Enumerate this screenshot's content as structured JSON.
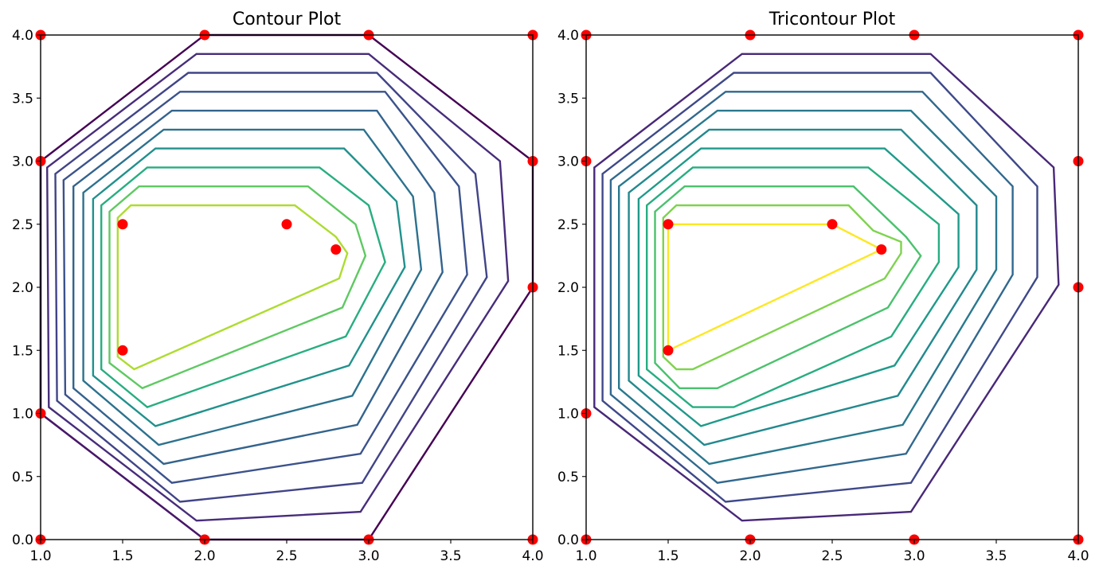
{
  "chart_data": [
    {
      "type": "contour",
      "title": "Contour Plot",
      "xlim": [
        1.0,
        4.0
      ],
      "ylim": [
        0.0,
        4.0
      ],
      "xticks": [
        "1.0",
        "1.5",
        "2.0",
        "2.5",
        "3.0",
        "3.5",
        "4.0"
      ],
      "yticks": [
        "0.0",
        "0.5",
        "1.0",
        "1.5",
        "2.0",
        "2.5",
        "3.0",
        "3.5",
        "4.0"
      ],
      "points_color": "#ff0000",
      "points": [
        [
          1.0,
          0.0
        ],
        [
          2.0,
          0.0
        ],
        [
          3.0,
          0.0
        ],
        [
          4.0,
          0.0
        ],
        [
          1.0,
          1.0
        ],
        [
          4.0,
          2.0
        ],
        [
          1.0,
          3.0
        ],
        [
          4.0,
          3.0
        ],
        [
          1.0,
          4.0
        ],
        [
          2.0,
          4.0
        ],
        [
          3.0,
          4.0
        ],
        [
          4.0,
          4.0
        ],
        [
          1.5,
          2.5
        ],
        [
          2.5,
          2.5
        ],
        [
          2.8,
          2.3
        ],
        [
          1.5,
          1.5
        ]
      ],
      "levels": [
        {
          "color": "#440154",
          "path": [
            [
              1.0,
              3.0
            ],
            [
              2.0,
              4.0
            ],
            [
              3.0,
              4.0
            ],
            [
              4.0,
              3.0
            ],
            [
              4.0,
              2.0
            ],
            [
              3.0,
              0.0
            ],
            [
              2.0,
              0.0
            ],
            [
              1.0,
              1.0
            ]
          ]
        },
        {
          "color": "#48186a",
          "path": [
            [
              1.0,
              3.0
            ],
            [
              1.0,
              1.0
            ],
            [
              2.0,
              0.0
            ],
            [
              2.0,
              0.0
            ]
          ],
          "open": true
        },
        {
          "color": "#472d7b",
          "path": [
            [
              1.04,
              2.95
            ],
            [
              1.95,
              3.85
            ],
            [
              3.0,
              3.85
            ],
            [
              3.8,
              3.0
            ],
            [
              3.85,
              2.05
            ],
            [
              2.95,
              0.22
            ],
            [
              1.95,
              0.15
            ],
            [
              1.05,
              1.05
            ]
          ]
        },
        {
          "color": "#414487",
          "path": [
            [
              1.09,
              2.9
            ],
            [
              1.9,
              3.7
            ],
            [
              3.05,
              3.7
            ],
            [
              3.65,
              2.9
            ],
            [
              3.72,
              2.08
            ],
            [
              2.96,
              0.45
            ],
            [
              1.85,
              0.3
            ],
            [
              1.1,
              1.1
            ]
          ]
        },
        {
          "color": "#3b528b",
          "path": [
            [
              1.14,
              2.85
            ],
            [
              1.85,
              3.55
            ],
            [
              3.1,
              3.55
            ],
            [
              3.55,
              2.8
            ],
            [
              3.6,
              2.1
            ],
            [
              2.95,
              0.68
            ],
            [
              1.8,
              0.45
            ],
            [
              1.15,
              1.15
            ]
          ]
        },
        {
          "color": "#33638d",
          "path": [
            [
              1.2,
              2.8
            ],
            [
              1.8,
              3.4
            ],
            [
              3.05,
              3.4
            ],
            [
              3.4,
              2.75
            ],
            [
              3.45,
              2.12
            ],
            [
              2.93,
              0.91
            ],
            [
              1.75,
              0.6
            ],
            [
              1.2,
              1.2
            ]
          ]
        },
        {
          "color": "#2c728e",
          "path": [
            [
              1.26,
              2.75
            ],
            [
              1.75,
              3.25
            ],
            [
              2.97,
              3.25
            ],
            [
              3.27,
              2.72
            ],
            [
              3.32,
              2.14
            ],
            [
              2.9,
              1.14
            ],
            [
              1.72,
              0.75
            ],
            [
              1.26,
              1.26
            ]
          ]
        },
        {
          "color": "#21918c",
          "path": [
            [
              1.32,
              2.7
            ],
            [
              1.7,
              3.1
            ],
            [
              2.85,
              3.1
            ],
            [
              3.17,
              2.68
            ],
            [
              3.22,
              2.16
            ],
            [
              2.88,
              1.38
            ],
            [
              1.7,
              0.9
            ],
            [
              1.32,
              1.3
            ]
          ]
        },
        {
          "color": "#28ae80",
          "path": [
            [
              1.37,
              2.65
            ],
            [
              1.65,
              2.95
            ],
            [
              2.7,
              2.95
            ],
            [
              3.0,
              2.65
            ],
            [
              3.1,
              2.2
            ],
            [
              2.86,
              1.61
            ],
            [
              1.65,
              1.05
            ],
            [
              1.37,
              1.35
            ]
          ]
        },
        {
          "color": "#5ec962",
          "path": [
            [
              1.42,
              2.6
            ],
            [
              1.6,
              2.8
            ],
            [
              2.63,
              2.8
            ],
            [
              2.92,
              2.5
            ],
            [
              2.98,
              2.25
            ],
            [
              2.84,
              1.84
            ],
            [
              1.62,
              1.2
            ],
            [
              1.42,
              1.4
            ]
          ]
        },
        {
          "color": "#addc30",
          "path": [
            [
              1.47,
              2.55
            ],
            [
              1.55,
              2.65
            ],
            [
              2.55,
              2.65
            ],
            [
              2.8,
              2.4
            ],
            [
              2.87,
              2.27
            ],
            [
              2.82,
              2.07
            ],
            [
              1.57,
              1.35
            ],
            [
              1.47,
              1.45
            ]
          ]
        }
      ]
    },
    {
      "type": "tricontour",
      "title": "Tricontour Plot",
      "xlim": [
        1.0,
        4.0
      ],
      "ylim": [
        0.0,
        4.0
      ],
      "xticks": [
        "1.0",
        "1.5",
        "2.0",
        "2.5",
        "3.0",
        "3.5",
        "4.0"
      ],
      "yticks": [
        "0.0",
        "0.5",
        "1.0",
        "1.5",
        "2.0",
        "2.5",
        "3.0",
        "3.5",
        "4.0"
      ],
      "points_color": "#ff0000",
      "points": [
        [
          1.0,
          0.0
        ],
        [
          2.0,
          0.0
        ],
        [
          3.0,
          0.0
        ],
        [
          4.0,
          0.0
        ],
        [
          1.0,
          1.0
        ],
        [
          4.0,
          2.0
        ],
        [
          1.0,
          3.0
        ],
        [
          4.0,
          3.0
        ],
        [
          1.0,
          4.0
        ],
        [
          2.0,
          4.0
        ],
        [
          3.0,
          4.0
        ],
        [
          4.0,
          4.0
        ],
        [
          1.5,
          2.5
        ],
        [
          2.5,
          2.5
        ],
        [
          2.8,
          2.3
        ],
        [
          1.5,
          1.5
        ]
      ],
      "levels": [
        {
          "color": "#482878",
          "path": [
            [
              1.05,
              2.95
            ],
            [
              1.95,
              3.85
            ],
            [
              3.1,
              3.85
            ],
            [
              3.85,
              2.95
            ],
            [
              3.88,
              2.02
            ],
            [
              2.98,
              0.22
            ],
            [
              1.95,
              0.15
            ],
            [
              1.05,
              1.05
            ]
          ]
        },
        {
          "color": "#3e4989",
          "path": [
            [
              1.1,
              2.9
            ],
            [
              1.9,
              3.7
            ],
            [
              3.1,
              3.7
            ],
            [
              3.75,
              2.8
            ],
            [
              3.75,
              2.08
            ],
            [
              2.98,
              0.45
            ],
            [
              1.85,
              0.3
            ],
            [
              1.1,
              1.1
            ]
          ]
        },
        {
          "color": "#31688e",
          "path": [
            [
              1.15,
              2.85
            ],
            [
              1.85,
              3.55
            ],
            [
              3.05,
              3.55
            ],
            [
              3.6,
              2.8
            ],
            [
              3.6,
              2.1
            ],
            [
              2.95,
              0.68
            ],
            [
              1.8,
              0.45
            ],
            [
              1.15,
              1.15
            ]
          ]
        },
        {
          "color": "#29798e",
          "path": [
            [
              1.2,
              2.8
            ],
            [
              1.8,
              3.4
            ],
            [
              2.98,
              3.4
            ],
            [
              3.5,
              2.72
            ],
            [
              3.5,
              2.14
            ],
            [
              2.93,
              0.91
            ],
            [
              1.75,
              0.6
            ],
            [
              1.2,
              1.2
            ]
          ]
        },
        {
          "color": "#23898e",
          "path": [
            [
              1.26,
              2.75
            ],
            [
              1.75,
              3.25
            ],
            [
              2.92,
              3.25
            ],
            [
              3.38,
              2.65
            ],
            [
              3.38,
              2.14
            ],
            [
              2.9,
              1.14
            ],
            [
              1.72,
              0.75
            ],
            [
              1.26,
              1.26
            ]
          ]
        },
        {
          "color": "#1f9a8a",
          "path": [
            [
              1.32,
              2.7
            ],
            [
              1.7,
              3.1
            ],
            [
              2.82,
              3.1
            ],
            [
              3.27,
              2.58
            ],
            [
              3.27,
              2.16
            ],
            [
              2.88,
              1.38
            ],
            [
              1.7,
              0.9
            ],
            [
              1.32,
              1.3
            ]
          ]
        },
        {
          "color": "#27ad81",
          "path": [
            [
              1.37,
              2.65
            ],
            [
              1.65,
              2.95
            ],
            [
              2.72,
              2.95
            ],
            [
              3.15,
              2.5
            ],
            [
              3.15,
              2.2
            ],
            [
              2.86,
              1.61
            ],
            [
              1.9,
              1.05
            ],
            [
              1.65,
              1.05
            ],
            [
              1.37,
              1.35
            ]
          ]
        },
        {
          "color": "#4ac16d",
          "path": [
            [
              1.42,
              2.6
            ],
            [
              1.6,
              2.8
            ],
            [
              2.63,
              2.8
            ],
            [
              2.95,
              2.4
            ],
            [
              3.04,
              2.25
            ],
            [
              2.84,
              1.84
            ],
            [
              1.8,
              1.2
            ],
            [
              1.57,
              1.2
            ],
            [
              1.42,
              1.4
            ]
          ]
        },
        {
          "color": "#7fd34e",
          "path": [
            [
              1.47,
              2.55
            ],
            [
              1.55,
              2.65
            ],
            [
              2.6,
              2.65
            ],
            [
              2.75,
              2.45
            ],
            [
              2.92,
              2.36
            ],
            [
              2.92,
              2.27
            ],
            [
              2.82,
              2.07
            ],
            [
              1.65,
              1.35
            ],
            [
              1.55,
              1.35
            ],
            [
              1.47,
              1.45
            ]
          ]
        },
        {
          "color": "#fde725",
          "path": [
            [
              1.5,
              2.5
            ],
            [
              2.5,
              2.5
            ],
            [
              2.8,
              2.3
            ],
            [
              1.5,
              1.5
            ]
          ]
        }
      ]
    }
  ]
}
